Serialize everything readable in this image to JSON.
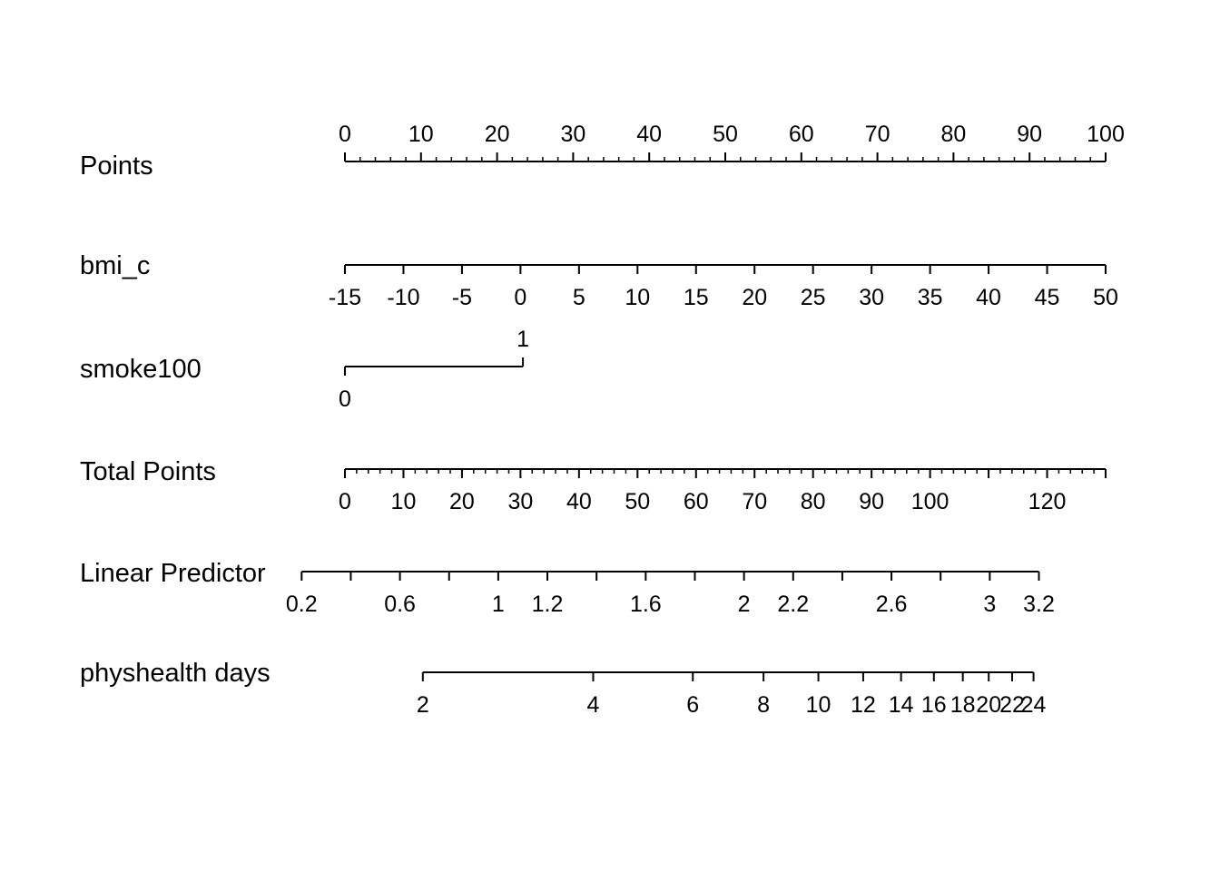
{
  "chart_data": {
    "type": "nomogram",
    "rows": [
      {
        "name": "Points",
        "label_side": "above",
        "ticks": [
          0,
          10,
          20,
          30,
          40,
          50,
          60,
          70,
          80,
          90,
          100
        ],
        "tick_labels": [
          "0",
          "10",
          "20",
          "30",
          "40",
          "50",
          "60",
          "70",
          "80",
          "90",
          "100"
        ],
        "minor_step": 2,
        "points_range": [
          0,
          100
        ]
      },
      {
        "name": "bmi_c",
        "label_side": "below",
        "ticks": [
          -15,
          -10,
          -5,
          0,
          5,
          10,
          15,
          20,
          25,
          30,
          35,
          40,
          45,
          50
        ],
        "tick_labels": [
          "-15",
          "-10",
          "-5",
          "0",
          "5",
          "10",
          "15",
          "20",
          "25",
          "30",
          "35",
          "40",
          "45",
          "50"
        ],
        "points_range": [
          0,
          100
        ]
      },
      {
        "name": "smoke100",
        "label_side": "alternate",
        "ticks": [
          0,
          1
        ],
        "tick_labels": [
          "0",
          "1"
        ],
        "points": [
          0,
          23.4
        ]
      },
      {
        "name": "Total Points",
        "label_side": "below",
        "ticks": [
          0,
          10,
          20,
          30,
          40,
          50,
          60,
          70,
          80,
          90,
          100,
          120
        ],
        "tick_labels": [
          "0",
          "10",
          "20",
          "30",
          "40",
          "50",
          "60",
          "70",
          "80",
          "90",
          "100",
          "120"
        ],
        "minor_step": 2,
        "total_range": [
          0,
          130
        ]
      },
      {
        "name": "Linear Predictor",
        "label_side": "below",
        "ticks": [
          0.2,
          0.4,
          0.6,
          0.8,
          1,
          1.2,
          1.4,
          1.6,
          1.8,
          2,
          2.2,
          2.4,
          2.6,
          2.8,
          3,
          3.2
        ],
        "tick_labels": [
          "0.2",
          "",
          "0.6",
          "",
          "1",
          "1.2",
          "",
          "1.6",
          "",
          "2",
          "2.2",
          "",
          "2.6",
          "",
          "3",
          "3.2"
        ],
        "minor_step": 0.1,
        "total_at_0_2": -7.4,
        "total_per_unit": 42
      },
      {
        "name": "physhealth days",
        "label_side": "below",
        "scale": "log",
        "ticks": [
          2,
          4,
          6,
          8,
          10,
          12,
          14,
          16,
          18,
          20,
          22,
          24
        ],
        "tick_labels": [
          "2",
          "4",
          "6",
          "8",
          "10",
          "12",
          "14",
          "16",
          "18",
          "20",
          "22",
          "24"
        ],
        "linear_predictor_of_log_days": true
      }
    ]
  }
}
